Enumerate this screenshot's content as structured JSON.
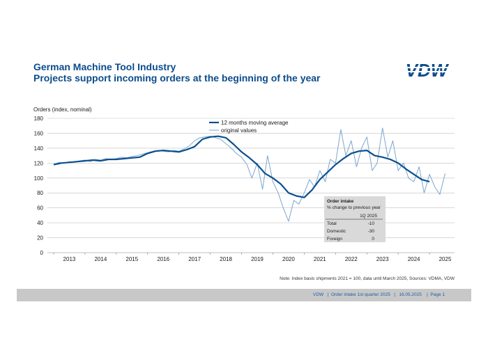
{
  "header": {
    "title": "German Machine Tool Industry",
    "subtitle": "Projects support incoming orders at the beginning of the year",
    "logo_text": "VDW"
  },
  "note": "Note: Index basis shipments 2021 = 100, data until March 2025, Sources: VDMA, VDW",
  "footer": {
    "text": "VDW   |  Order intake 1st quarter 2025   |   16.05.2025    |  Page 1"
  },
  "colors": {
    "title": "#0b4c8c",
    "moving_average": "#0b4f8f",
    "original": "#7aa6cf",
    "grid": "#bfbfbf",
    "box_bg": "#d9d9d9",
    "footer_bg": "#c8c8c8"
  },
  "info_box": {
    "title": "Order intake",
    "subtitle": "% change to previous year",
    "column_header": "1Q 2025",
    "rows": [
      {
        "label": "Total",
        "value": "-10"
      },
      {
        "label": "Domestic",
        "value": "-30"
      },
      {
        "label": "Foreign",
        "value": "0"
      }
    ]
  },
  "chart_data": {
    "type": "line",
    "ylabel": "Orders (index, nominal)",
    "ylim": [
      0,
      180
    ],
    "yticks": [
      0,
      20,
      40,
      60,
      80,
      100,
      120,
      140,
      160,
      180
    ],
    "xticks": [
      "2013",
      "2014",
      "2015",
      "2016",
      "2017",
      "2018",
      "2019",
      "2020",
      "2021",
      "2022",
      "2023",
      "2024",
      "2025"
    ],
    "grid": true,
    "legend_position": "top-center",
    "series": [
      {
        "name": "12 months moving average",
        "x": [
          2013.0,
          2013.25,
          2013.5,
          2013.75,
          2014.0,
          2014.25,
          2014.5,
          2014.75,
          2015.0,
          2015.25,
          2015.5,
          2015.75,
          2016.0,
          2016.25,
          2016.5,
          2016.75,
          2017.0,
          2017.25,
          2017.5,
          2017.75,
          2018.0,
          2018.25,
          2018.5,
          2018.75,
          2019.0,
          2019.25,
          2019.5,
          2019.75,
          2020.0,
          2020.25,
          2020.5,
          2020.75,
          2021.0,
          2021.25,
          2021.5,
          2021.75,
          2022.0,
          2022.25,
          2022.5,
          2022.75,
          2023.0,
          2023.25,
          2023.5,
          2023.75,
          2024.0,
          2024.25,
          2024.5,
          2024.75,
          2025.0
        ],
        "values": [
          118,
          120,
          121,
          122,
          123,
          124,
          123,
          125,
          125,
          126,
          127,
          128,
          133,
          136,
          137,
          136,
          135,
          138,
          142,
          152,
          155,
          156,
          154,
          145,
          135,
          127,
          118,
          106,
          100,
          92,
          80,
          76,
          74,
          84,
          98,
          108,
          118,
          126,
          133,
          136,
          137,
          130,
          128,
          125,
          120,
          112,
          105,
          98,
          95
        ]
      },
      {
        "name": "original values",
        "x": [
          2013.0,
          2013.17,
          2013.33,
          2013.5,
          2013.67,
          2013.83,
          2014.0,
          2014.17,
          2014.33,
          2014.5,
          2014.67,
          2014.83,
          2015.0,
          2015.17,
          2015.33,
          2015.5,
          2015.67,
          2015.83,
          2016.0,
          2016.17,
          2016.33,
          2016.5,
          2016.67,
          2016.83,
          2017.0,
          2017.17,
          2017.33,
          2017.5,
          2017.67,
          2017.83,
          2018.0,
          2018.17,
          2018.33,
          2018.5,
          2018.67,
          2018.83,
          2019.0,
          2019.17,
          2019.33,
          2019.5,
          2019.67,
          2019.83,
          2020.0,
          2020.17,
          2020.33,
          2020.5,
          2020.67,
          2020.83,
          2021.0,
          2021.17,
          2021.33,
          2021.5,
          2021.67,
          2021.83,
          2022.0,
          2022.17,
          2022.33,
          2022.5,
          2022.67,
          2022.83,
          2023.0,
          2023.17,
          2023.33,
          2023.5,
          2023.67,
          2023.83,
          2024.0,
          2024.17,
          2024.33,
          2024.5,
          2024.67,
          2024.83,
          2025.0,
          2025.17,
          2025.33,
          2025.5
        ],
        "values": [
          118,
          121,
          120,
          122,
          121,
          123,
          124,
          122,
          125,
          124,
          126,
          125,
          126,
          128,
          127,
          129,
          130,
          132,
          134,
          136,
          137,
          136,
          135,
          137,
          136,
          139,
          143,
          150,
          154,
          155,
          156,
          154,
          152,
          146,
          140,
          133,
          128,
          118,
          100,
          120,
          85,
          130,
          95,
          80,
          60,
          42,
          70,
          65,
          80,
          98,
          88,
          110,
          95,
          125,
          120,
          165,
          130,
          150,
          115,
          140,
          155,
          110,
          120,
          167,
          128,
          150,
          110,
          120,
          100,
          95,
          115,
          80,
          105,
          88,
          78,
          106
        ]
      }
    ]
  }
}
